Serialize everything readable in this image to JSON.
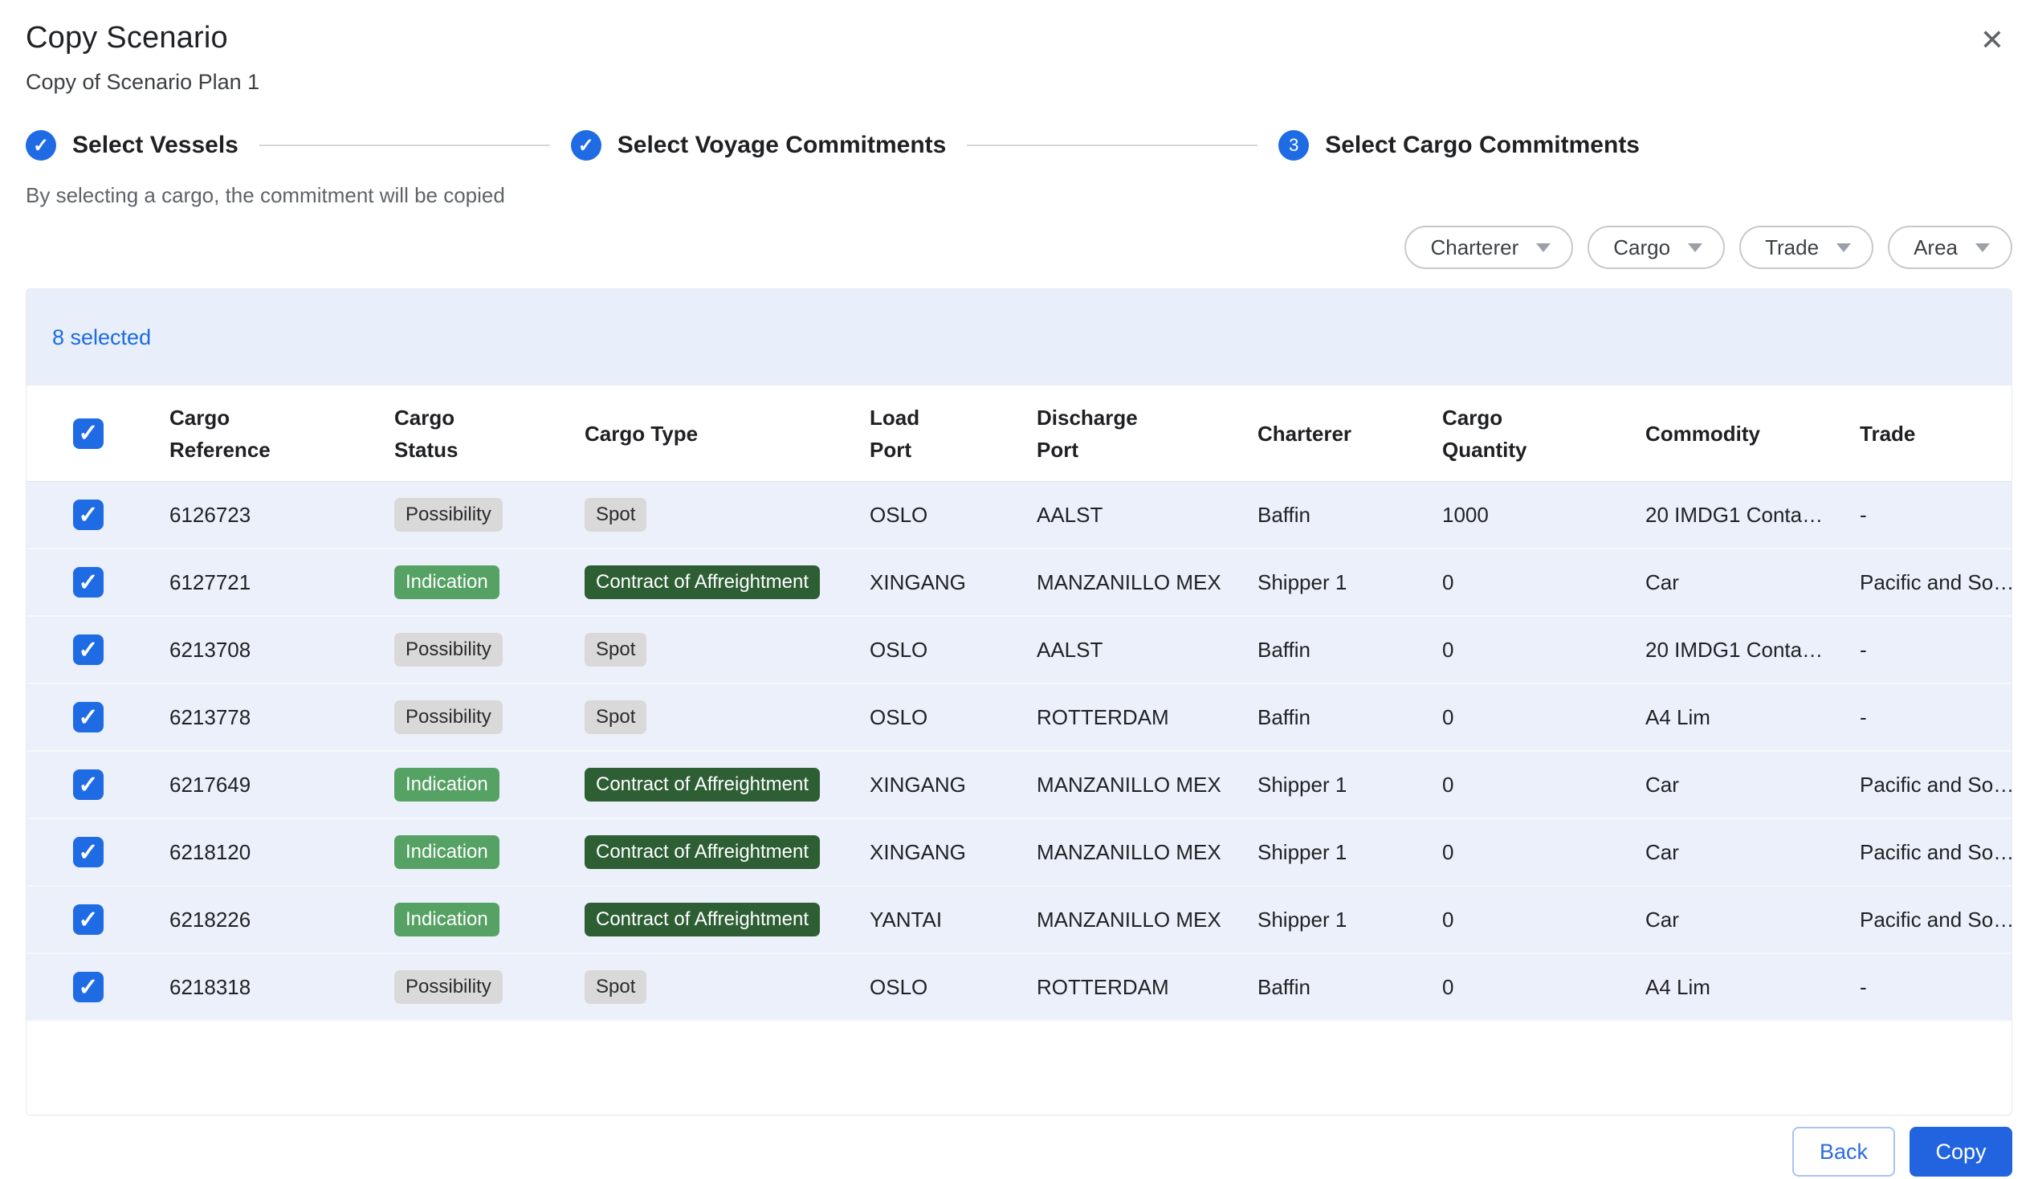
{
  "dialog": {
    "title": "Copy Scenario",
    "subtitle": "Copy of Scenario Plan 1",
    "hint": "By selecting a cargo, the commitment will be copied"
  },
  "stepper": {
    "steps": [
      {
        "label": "Select Vessels",
        "state": "complete"
      },
      {
        "label": "Select Voyage Commitments",
        "state": "complete"
      },
      {
        "label": "Select Cargo Commitments",
        "state": "active",
        "number": "3"
      }
    ]
  },
  "filters": [
    {
      "label": "Charterer"
    },
    {
      "label": "Cargo"
    },
    {
      "label": "Trade"
    },
    {
      "label": "Area"
    }
  ],
  "table": {
    "selected_count_label": "8 selected",
    "columns": [
      "Cargo\nReference",
      "Cargo\nStatus",
      "Cargo Type",
      "Load\nPort",
      "Discharge\nPort",
      "Charterer",
      "Cargo\nQuantity",
      "Commodity",
      "Trade"
    ],
    "rows": [
      {
        "checked": true,
        "reference": "6126723",
        "status": "Possibility",
        "status_variant": "gray",
        "type": "Spot",
        "type_variant": "gray",
        "load_port": "OSLO",
        "discharge_port": "AALST",
        "charterer": "Baffin",
        "quantity": "1000",
        "commodity": "20 IMDG1 Conta…",
        "trade": "-"
      },
      {
        "checked": true,
        "reference": "6127721",
        "status": "Indication",
        "status_variant": "green",
        "type": "Contract of Affreightment",
        "type_variant": "darkgreen",
        "load_port": "XINGANG",
        "discharge_port": "MANZANILLO MEX",
        "charterer": "Shipper 1",
        "quantity": "0",
        "commodity": "Car",
        "trade": "Pacific and So…"
      },
      {
        "checked": true,
        "reference": "6213708",
        "status": "Possibility",
        "status_variant": "gray",
        "type": "Spot",
        "type_variant": "gray",
        "load_port": "OSLO",
        "discharge_port": "AALST",
        "charterer": "Baffin",
        "quantity": "0",
        "commodity": "20 IMDG1 Conta…",
        "trade": "-"
      },
      {
        "checked": true,
        "reference": "6213778",
        "status": "Possibility",
        "status_variant": "gray",
        "type": "Spot",
        "type_variant": "gray",
        "load_port": "OSLO",
        "discharge_port": "ROTTERDAM",
        "charterer": "Baffin",
        "quantity": "0",
        "commodity": "A4 Lim",
        "trade": "-"
      },
      {
        "checked": true,
        "reference": "6217649",
        "status": "Indication",
        "status_variant": "green",
        "type": "Contract of Affreightment",
        "type_variant": "darkgreen",
        "load_port": "XINGANG",
        "discharge_port": "MANZANILLO MEX",
        "charterer": "Shipper 1",
        "quantity": "0",
        "commodity": "Car",
        "trade": "Pacific and So…"
      },
      {
        "checked": true,
        "reference": "6218120",
        "status": "Indication",
        "status_variant": "green",
        "type": "Contract of Affreightment",
        "type_variant": "darkgreen",
        "load_port": "XINGANG",
        "discharge_port": "MANZANILLO MEX",
        "charterer": "Shipper 1",
        "quantity": "0",
        "commodity": "Car",
        "trade": "Pacific and So…"
      },
      {
        "checked": true,
        "reference": "6218226",
        "status": "Indication",
        "status_variant": "green",
        "type": "Contract of Affreightment",
        "type_variant": "darkgreen",
        "load_port": "YANTAI",
        "discharge_port": "MANZANILLO MEX",
        "charterer": "Shipper 1",
        "quantity": "0",
        "commodity": "Car",
        "trade": "Pacific and So…"
      },
      {
        "checked": true,
        "reference": "6218318",
        "status": "Possibility",
        "status_variant": "gray",
        "type": "Spot",
        "type_variant": "gray",
        "load_port": "OSLO",
        "discharge_port": "ROTTERDAM",
        "charterer": "Baffin",
        "quantity": "0",
        "commodity": "A4 Lim",
        "trade": "-"
      }
    ]
  },
  "footer": {
    "back_label": "Back",
    "copy_label": "Copy"
  },
  "icons": {
    "close": "✕",
    "check": "✓"
  },
  "colors": {
    "accent_blue": "#1f6be4",
    "selected_text_blue": "#1a6ce0",
    "copy_button_blue": "#2264e0",
    "selection_bar_bg": "#e9eefb",
    "selected_row_bg": "#ecf0fa",
    "badge_gray_bg": "#d9d9d9",
    "badge_green_bg": "#56a164",
    "badge_dark_green_bg": "#2d5e34"
  }
}
